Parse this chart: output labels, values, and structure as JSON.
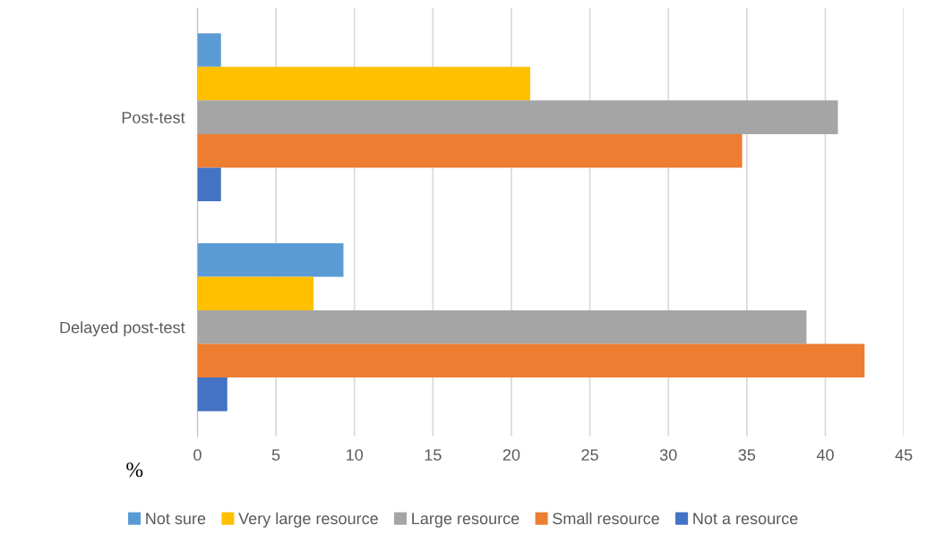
{
  "chart_data": {
    "type": "bar",
    "orientation": "horizontal",
    "categories": [
      "Post-test",
      "Delayed post-test"
    ],
    "xlabel": "%",
    "series": [
      {
        "name": "Not sure",
        "color": "#5b9bd5",
        "values": [
          1.5,
          9.3
        ]
      },
      {
        "name": "Very large resource",
        "color": "#ffc000",
        "values": [
          21.2,
          7.4
        ]
      },
      {
        "name": "Large resource",
        "color": "#a5a5a5",
        "values": [
          40.8,
          38.8
        ]
      },
      {
        "name": "Small resource",
        "color": "#ed7d31",
        "values": [
          34.7,
          42.5
        ]
      },
      {
        "name": "Not a resource",
        "color": "#4472c4",
        "values": [
          1.5,
          1.9
        ]
      }
    ],
    "xlim": [
      0,
      45
    ],
    "xticks": [
      0,
      5,
      10,
      15,
      20,
      25,
      30,
      35,
      40,
      45
    ],
    "grid": "x",
    "legend": "bottom"
  }
}
